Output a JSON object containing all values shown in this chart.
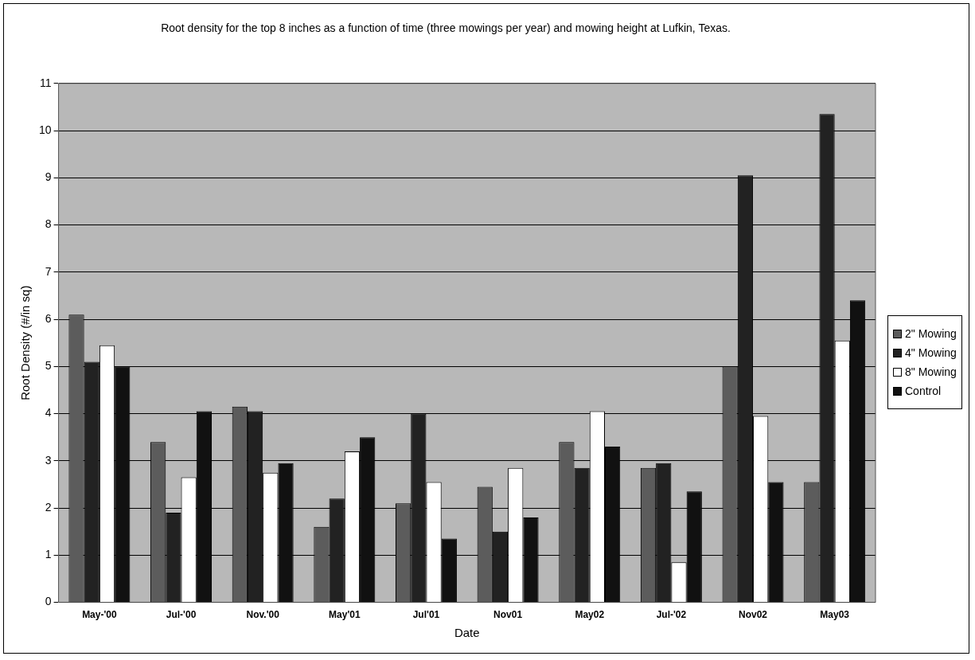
{
  "chart_data": {
    "type": "bar",
    "title": "Root density for the top 8 inches as a function of time (three mowings per year) and mowing height at Lufkin, Texas.",
    "xlabel": "Date",
    "ylabel": "Root Density (#/in sq)",
    "categories": [
      "May-'00",
      "Jul-'00",
      "Nov.'00",
      "May'01",
      "Jul'01",
      "Nov01",
      "May02",
      "Jul-'02",
      "Nov02",
      "May03"
    ],
    "series": [
      {
        "name": "2\" Mowing",
        "color": "#5c5c5c",
        "values": [
          6.1,
          3.4,
          4.15,
          1.6,
          2.1,
          2.45,
          3.4,
          2.85,
          5.0,
          2.55
        ]
      },
      {
        "name": "4\" Mowing",
        "color": "#222222",
        "values": [
          5.1,
          1.9,
          4.05,
          2.2,
          4.0,
          1.5,
          2.85,
          2.95,
          9.05,
          10.35
        ]
      },
      {
        "name": "8\" Mowing",
        "color": "#ffffff",
        "values": [
          5.45,
          2.65,
          2.75,
          3.2,
          2.55,
          2.85,
          4.05,
          0.85,
          3.95,
          5.55
        ]
      },
      {
        "name": "Control",
        "color": "#111111",
        "values": [
          5.0,
          4.05,
          2.95,
          3.5,
          1.35,
          1.8,
          3.3,
          2.35,
          2.55,
          6.4
        ]
      }
    ],
    "ylim": [
      0,
      11
    ],
    "yticks": [
      0,
      1,
      2,
      3,
      4,
      5,
      6,
      7,
      8,
      9,
      10,
      11
    ],
    "grid": "y",
    "legend": "right"
  }
}
